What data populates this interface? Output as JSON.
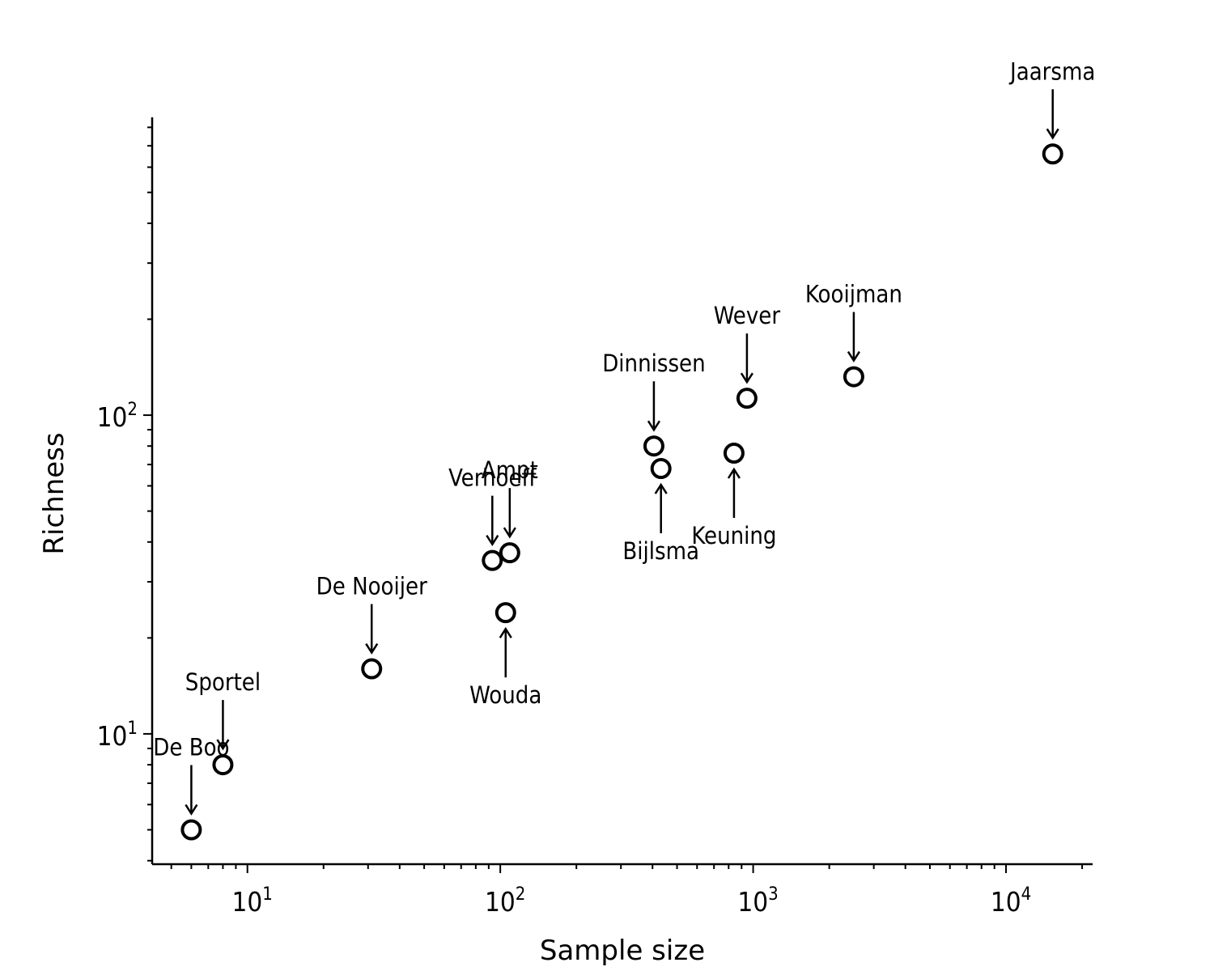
{
  "chart_data": {
    "type": "scatter",
    "xlabel": "Sample size",
    "ylabel": "Richness",
    "xscale": "log",
    "yscale": "log",
    "xlim": [
      4.2,
      22000
    ],
    "ylim": [
      3.9,
      860
    ],
    "xticks": [
      {
        "base": "10",
        "exp": "1",
        "value": 10
      },
      {
        "base": "10",
        "exp": "2",
        "value": 100
      },
      {
        "base": "10",
        "exp": "3",
        "value": 1000
      },
      {
        "base": "10",
        "exp": "4",
        "value": 10000
      }
    ],
    "yticks": [
      {
        "base": "10",
        "exp": "1",
        "value": 10
      },
      {
        "base": "10",
        "exp": "2",
        "value": 100
      }
    ],
    "grid": false,
    "legend": "none",
    "marker": "open-circle",
    "points": [
      {
        "label": "De Boo",
        "x": 6,
        "y": 5,
        "ann": "above"
      },
      {
        "label": "Sportel",
        "x": 8,
        "y": 8,
        "ann": "above"
      },
      {
        "label": "De Nooijer",
        "x": 31,
        "y": 16,
        "ann": "above"
      },
      {
        "label": "Verhoeff",
        "x": 93,
        "y": 35,
        "ann": "above"
      },
      {
        "label": "Ampt",
        "x": 109,
        "y": 37,
        "ann": "above"
      },
      {
        "label": "Wouda",
        "x": 105,
        "y": 24,
        "ann": "below"
      },
      {
        "label": "Dinnissen",
        "x": 405,
        "y": 80,
        "ann": "above"
      },
      {
        "label": "Bijlsma",
        "x": 432,
        "y": 68,
        "ann": "below"
      },
      {
        "label": "Keuning",
        "x": 840,
        "y": 76,
        "ann": "below"
      },
      {
        "label": "Wever",
        "x": 945,
        "y": 113,
        "ann": "above"
      },
      {
        "label": "Kooijman",
        "x": 2500,
        "y": 132,
        "ann": "above"
      },
      {
        "label": "Jaarsma",
        "x": 15300,
        "y": 660,
        "ann": "above"
      }
    ]
  }
}
